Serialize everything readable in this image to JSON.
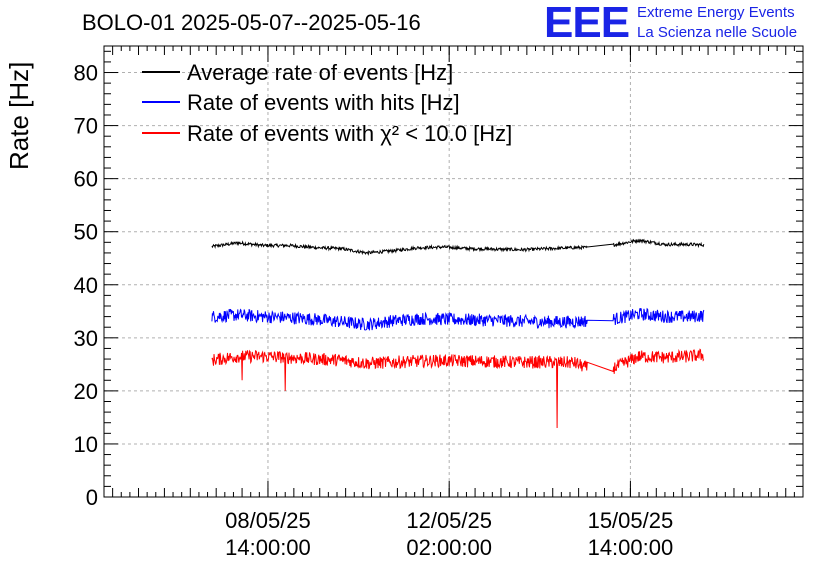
{
  "header": {
    "title": "BOLO-01 2025-05-07--2025-05-16",
    "logo_text": "EEE",
    "logo_line1": "Extreme Energy Events",
    "logo_line2": "La Scienza nelle Scuole"
  },
  "chart_data": {
    "type": "line",
    "title": "BOLO-01 2025-05-07--2025-05-16",
    "ylabel": "Rate [Hz]",
    "xlabel": "",
    "ylim": [
      0,
      85
    ],
    "yticks": [
      0,
      10,
      20,
      30,
      40,
      50,
      60,
      70,
      80
    ],
    "x_tick_labels": [
      {
        "x": "2025-05-08 14:00",
        "line1": "08/05/25",
        "line2": "14:00:00"
      },
      {
        "x": "2025-05-12 02:00",
        "line1": "12/05/25",
        "line2": "02:00:00"
      },
      {
        "x": "2025-05-15 14:00",
        "line1": "15/05/25",
        "line2": "14:00:00"
      }
    ],
    "xlim": [
      "2025-05-05 10:00",
      "2025-05-18 22:00"
    ],
    "grid": true,
    "legend_position": "top-left",
    "gap": {
      "start": "2025-05-14 18:00",
      "end": "2025-05-15 06:00"
    },
    "series": [
      {
        "name": "Average rate of events [Hz]",
        "color": "#000000",
        "noise": 0.3,
        "points": [
          [
            "2025-05-07 12:00",
            47.2
          ],
          [
            "2025-05-08 00:00",
            47.9
          ],
          [
            "2025-05-08 12:00",
            47.4
          ],
          [
            "2025-05-09 00:00",
            47.4
          ],
          [
            "2025-05-09 12:00",
            47.0
          ],
          [
            "2025-05-10 00:00",
            46.8
          ],
          [
            "2025-05-10 12:00",
            46.0
          ],
          [
            "2025-05-11 00:00",
            46.4
          ],
          [
            "2025-05-11 12:00",
            47.0
          ],
          [
            "2025-05-12 00:00",
            47.1
          ],
          [
            "2025-05-12 12:00",
            46.8
          ],
          [
            "2025-05-13 00:00",
            46.7
          ],
          [
            "2025-05-13 12:00",
            46.6
          ],
          [
            "2025-05-14 00:00",
            46.8
          ],
          [
            "2025-05-14 12:00",
            47.0
          ],
          [
            "2025-05-14 18:00",
            47.0
          ],
          [
            "2025-05-15 06:00",
            47.5
          ],
          [
            "2025-05-15 18:00",
            48.4
          ],
          [
            "2025-05-16 06:00",
            47.6
          ],
          [
            "2025-05-16 18:00",
            47.6
          ],
          [
            "2025-05-17 00:00",
            47.5
          ]
        ]
      },
      {
        "name": "Rate of events with hits [Hz]",
        "color": "#0000ff",
        "noise": 1.2,
        "points": [
          [
            "2025-05-07 12:00",
            34.0
          ],
          [
            "2025-05-08 00:00",
            34.3
          ],
          [
            "2025-05-08 12:00",
            34.0
          ],
          [
            "2025-05-09 00:00",
            33.8
          ],
          [
            "2025-05-09 12:00",
            33.5
          ],
          [
            "2025-05-10 00:00",
            33.0
          ],
          [
            "2025-05-10 12:00",
            32.5
          ],
          [
            "2025-05-11 00:00",
            33.2
          ],
          [
            "2025-05-11 12:00",
            33.6
          ],
          [
            "2025-05-12 00:00",
            33.5
          ],
          [
            "2025-05-12 12:00",
            33.4
          ],
          [
            "2025-05-13 00:00",
            33.3
          ],
          [
            "2025-05-13 12:00",
            33.1
          ],
          [
            "2025-05-14 00:00",
            33.0
          ],
          [
            "2025-05-14 12:00",
            33.0
          ],
          [
            "2025-05-14 18:00",
            33.2
          ],
          [
            "2025-05-15 06:00",
            33.5
          ],
          [
            "2025-05-15 18:00",
            34.5
          ],
          [
            "2025-05-16 06:00",
            34.0
          ],
          [
            "2025-05-16 18:00",
            34.0
          ],
          [
            "2025-05-17 00:00",
            34.2
          ]
        ]
      },
      {
        "name": "Rate of events with χ² < 10.0 [Hz]",
        "color": "#ff0000",
        "noise": 1.2,
        "points": [
          [
            "2025-05-07 12:00",
            25.8
          ],
          [
            "2025-05-08 00:00",
            26.5
          ],
          [
            "2025-05-08 12:00",
            26.5
          ],
          [
            "2025-05-09 00:00",
            26.3
          ],
          [
            "2025-05-09 12:00",
            26.0
          ],
          [
            "2025-05-10 00:00",
            25.8
          ],
          [
            "2025-05-10 12:00",
            25.2
          ],
          [
            "2025-05-11 00:00",
            25.4
          ],
          [
            "2025-05-11 12:00",
            25.6
          ],
          [
            "2025-05-12 00:00",
            25.7
          ],
          [
            "2025-05-12 12:00",
            25.6
          ],
          [
            "2025-05-13 00:00",
            25.5
          ],
          [
            "2025-05-13 12:00",
            25.4
          ],
          [
            "2025-05-14 00:00",
            25.4
          ],
          [
            "2025-05-14 12:00",
            25.3
          ],
          [
            "2025-05-14 18:00",
            24.3
          ],
          [
            "2025-05-15 06:00",
            24.3
          ],
          [
            "2025-05-15 18:00",
            26.5
          ],
          [
            "2025-05-16 06:00",
            26.3
          ],
          [
            "2025-05-16 18:00",
            26.5
          ],
          [
            "2025-05-17 00:00",
            26.8
          ]
        ],
        "spikes": [
          [
            "2025-05-08 02:00",
            22.0
          ],
          [
            "2025-05-08 22:00",
            20.0
          ],
          [
            "2025-05-14 04:00",
            13.0
          ]
        ]
      }
    ]
  }
}
